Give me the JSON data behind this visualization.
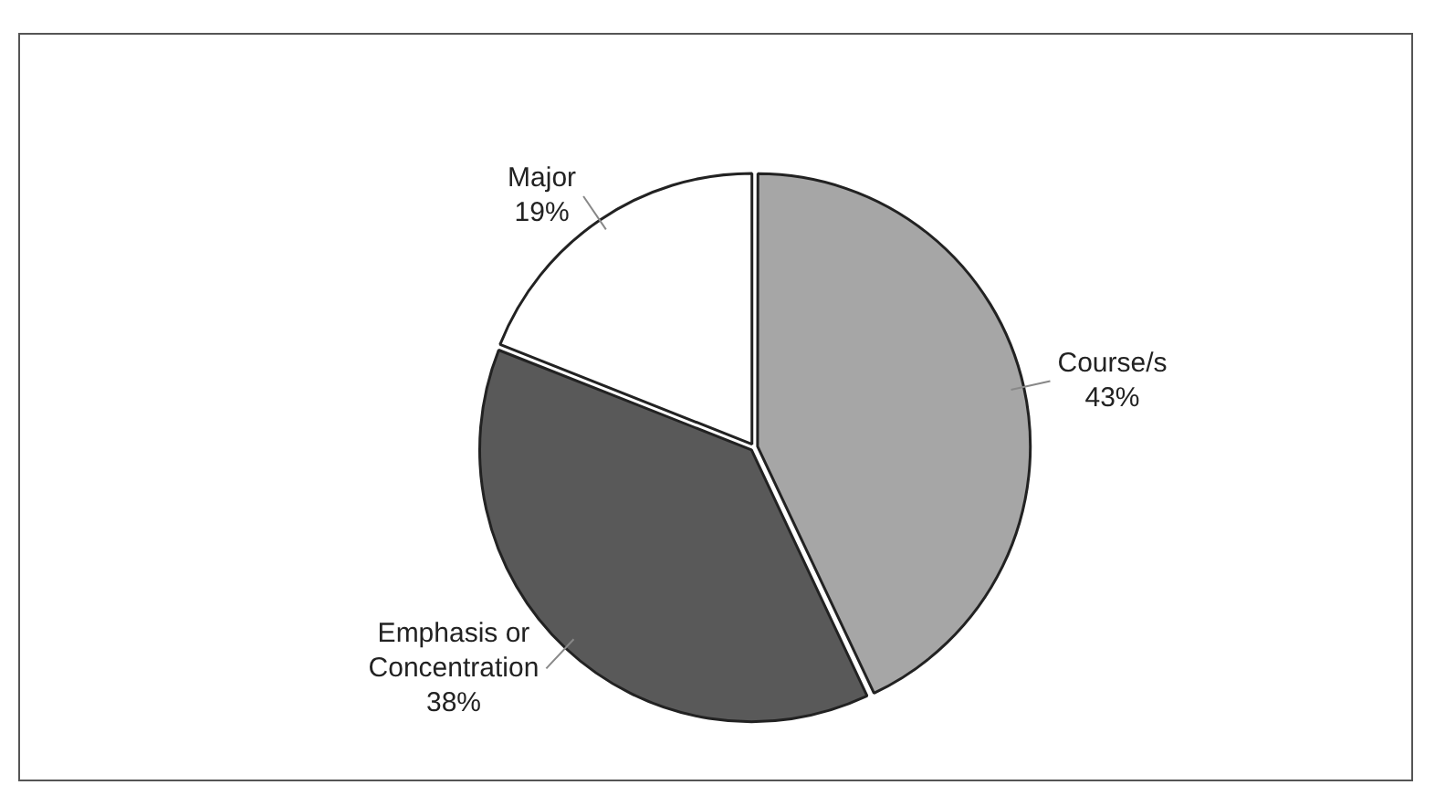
{
  "chart_data": {
    "type": "pie",
    "categories": [
      "Course/s",
      "Emphasis or Concentration",
      "Major"
    ],
    "values": [
      43,
      38,
      19
    ],
    "colors": [
      "#a6a6a6",
      "#595959",
      "#ffffff"
    ],
    "value_labels": [
      "43%",
      "38%",
      "19%"
    ],
    "legend": false
  }
}
